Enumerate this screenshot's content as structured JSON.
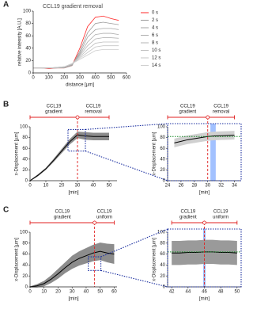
{
  "chart_data": [
    {
      "panel": "A",
      "type": "line",
      "title": "CCL19 gradient removal",
      "xlabel": "distance [µm]",
      "ylabel": "relative intensity [A.U.]",
      "x": [
        0,
        50,
        100,
        150,
        200,
        250,
        300,
        350,
        400,
        450,
        500,
        550
      ],
      "xlim": [
        0,
        600
      ],
      "xticks": [
        0,
        100,
        200,
        300,
        400,
        500,
        600
      ],
      "ylim": [
        0,
        100
      ],
      "yticks": [
        0,
        20,
        40,
        60,
        80,
        100
      ],
      "legend": "right",
      "series": [
        {
          "name": "0 s",
          "color": "#ff2a2a",
          "values": [
            8,
            8,
            7,
            8,
            8,
            12,
            40,
            75,
            90,
            92,
            88,
            85
          ]
        },
        {
          "name": "2 s",
          "color": "#9a9a9a",
          "values": [
            8,
            8,
            8,
            8,
            8,
            12,
            35,
            65,
            80,
            82,
            80,
            78
          ]
        },
        {
          "name": "4 s",
          "color": "#a4a4a4",
          "values": [
            8,
            8,
            8,
            8,
            9,
            13,
            32,
            58,
            70,
            72,
            72,
            70
          ]
        },
        {
          "name": "6 s",
          "color": "#aeaeae",
          "values": [
            8,
            8,
            8,
            8,
            9,
            14,
            30,
            50,
            62,
            64,
            64,
            62
          ]
        },
        {
          "name": "8 s",
          "color": "#b6b6b6",
          "values": [
            8,
            8,
            8,
            8,
            9,
            14,
            28,
            44,
            55,
            57,
            57,
            56
          ]
        },
        {
          "name": "10 s",
          "color": "#bebebe",
          "values": [
            8,
            8,
            8,
            9,
            10,
            15,
            26,
            38,
            48,
            50,
            50,
            50
          ]
        },
        {
          "name": "12 s",
          "color": "#c6c6c6",
          "values": [
            8,
            8,
            8,
            9,
            10,
            15,
            24,
            33,
            42,
            44,
            44,
            44
          ]
        },
        {
          "name": "14 s",
          "color": "#cecece",
          "values": [
            8,
            8,
            8,
            9,
            10,
            15,
            22,
            29,
            36,
            38,
            38,
            38
          ]
        }
      ]
    },
    {
      "panel": "B",
      "type": "line",
      "xlabel": "[min]",
      "ylabel": "x-Displacement [µm]",
      "x": [
        0,
        5,
        10,
        15,
        20,
        25,
        30,
        35,
        40,
        45,
        50
      ],
      "xlim": [
        0,
        55
      ],
      "xticks": [
        0,
        10,
        20,
        30,
        40,
        50
      ],
      "ylim": [
        0,
        100
      ],
      "yticks": [
        0,
        20,
        40,
        60,
        80,
        100
      ],
      "vline": 30,
      "phases": [
        {
          "label": [
            "CCL19",
            "gradient"
          ],
          "start": 0,
          "end": 30
        },
        {
          "label": [
            "CCL19",
            "removal"
          ],
          "start": 30,
          "end": 50
        }
      ],
      "series": [
        {
          "color": "#000000",
          "band_color": "#8c8c8c",
          "values": [
            0,
            10,
            22,
            38,
            55,
            72,
            85,
            83,
            82,
            82,
            82
          ],
          "errors": [
            1,
            2,
            2,
            3,
            4,
            5,
            6,
            7,
            7,
            7,
            7
          ]
        }
      ]
    },
    {
      "type": "line",
      "xlabel": "[min]",
      "ylabel": "x-Displacement [µm]",
      "x": [
        25,
        26,
        27,
        28,
        29,
        30,
        31,
        32,
        33,
        34
      ],
      "xlim": [
        24,
        35
      ],
      "xticks": [
        24,
        26,
        28,
        30,
        32,
        34
      ],
      "ylim": [
        0,
        100
      ],
      "yticks": [
        0,
        20,
        40,
        60,
        80,
        100
      ],
      "vline": 30,
      "hline": 82,
      "highlight": [
        30.4,
        31.2
      ],
      "phases": [
        {
          "label": [
            "CCL19",
            "gradient"
          ],
          "start": 24,
          "end": 30
        },
        {
          "label": [
            "CCL19",
            "removal"
          ],
          "start": 30,
          "end": 34
        }
      ],
      "series": [
        {
          "color": "#000000",
          "band_color": "#d0d0d0",
          "values": [
            70,
            73,
            76,
            78,
            80,
            82,
            83,
            83.5,
            84,
            84.5
          ],
          "errors": [
            8,
            8,
            8,
            8,
            8,
            8,
            8,
            8,
            8,
            8
          ]
        }
      ]
    },
    {
      "panel": "C",
      "type": "line",
      "xlabel": "[min]",
      "ylabel": "x-Displacement [µm]",
      "x": [
        0,
        5,
        10,
        15,
        20,
        25,
        30,
        35,
        40,
        45,
        50,
        55,
        60
      ],
      "xlim": [
        0,
        62
      ],
      "xticks": [
        0,
        10,
        20,
        30,
        40,
        50,
        60
      ],
      "ylim": [
        0,
        100
      ],
      "yticks": [
        0,
        20,
        40,
        60,
        80,
        100
      ],
      "vline": 46,
      "phases": [
        {
          "label": [
            "CCL19",
            "gradient"
          ],
          "start": 0,
          "end": 46
        },
        {
          "label": [
            "CCL19",
            "uniform"
          ],
          "start": 46,
          "end": 60
        }
      ],
      "series": [
        {
          "color": "#000000",
          "band_color": "#8c8c8c",
          "values": [
            0,
            2,
            6,
            14,
            24,
            35,
            45,
            52,
            57,
            62,
            65,
            62,
            60
          ],
          "errors": [
            1,
            3,
            5,
            7,
            9,
            10,
            12,
            13,
            14,
            15,
            16,
            17,
            18
          ]
        }
      ]
    },
    {
      "type": "line",
      "xlabel": "[min]",
      "ylabel": "x-Displacement [µm]",
      "x": [
        42,
        43,
        44,
        45,
        46,
        47,
        48,
        49,
        50
      ],
      "xlim": [
        41.5,
        50.5
      ],
      "xticks": [
        42,
        44,
        46,
        48,
        50
      ],
      "ylim": [
        0,
        100
      ],
      "yticks": [
        0,
        20,
        40,
        60,
        80,
        100
      ],
      "vline": 46,
      "hline": 64,
      "highlight": [
        45.85,
        46.15
      ],
      "phases": [
        {
          "label": [
            "CCL19",
            "gradient"
          ],
          "start": 42,
          "end": 46
        },
        {
          "label": [
            "CCL19",
            "uniform"
          ],
          "start": 46,
          "end": 50
        }
      ],
      "series": [
        {
          "color": "#000000",
          "band_color": "#9a9a9a",
          "values": [
            62,
            62,
            63,
            63,
            64,
            64,
            63,
            63,
            62
          ],
          "errors": [
            22,
            22,
            22,
            22,
            22,
            22,
            22,
            22,
            22
          ]
        }
      ]
    }
  ]
}
